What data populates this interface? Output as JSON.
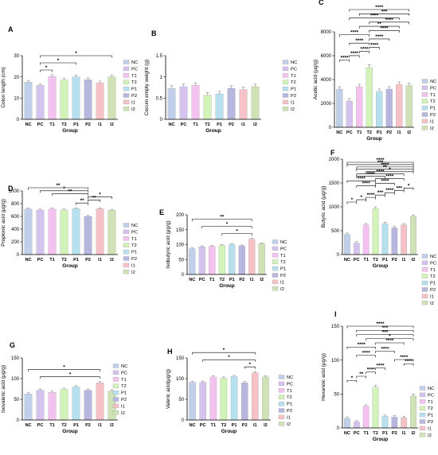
{
  "groups": [
    "NC",
    "PC",
    "T1",
    "T2",
    "P1",
    "P2",
    "I1",
    "I2"
  ],
  "colors": [
    "#c0d0ea",
    "#d5c2ee",
    "#f4c2ef",
    "#d2f3b8",
    "#b6e0ee",
    "#b6b6de",
    "#f6c2c8",
    "#cfe2b6"
  ],
  "chart_data": [
    {
      "panel": "A",
      "type": "bar",
      "xlabel": "Group",
      "ylabel": "Colon length (cm)",
      "ylim": [
        0,
        30
      ],
      "yticks": [
        0,
        10,
        20,
        30
      ],
      "values": [
        17.5,
        16.0,
        20.2,
        18.5,
        20.0,
        18.7,
        17.2,
        20.0
      ],
      "errors": [
        0.8,
        0.8,
        0.8,
        0.8,
        0.8,
        0.8,
        0.8,
        0.8
      ],
      "brackets": [
        {
          "from": "PC",
          "to": "T1",
          "label": "*"
        },
        {
          "from": "PC",
          "to": "P1",
          "label": "*"
        },
        {
          "from": "PC",
          "to": "I2",
          "label": "*"
        }
      ]
    },
    {
      "panel": "B",
      "type": "bar",
      "xlabel": "Group",
      "ylabel": "Cecum empty weight (g)",
      "ylim": [
        0,
        1.5
      ],
      "yticks": [
        0,
        0.5,
        1.0,
        1.5
      ],
      "values": [
        0.73,
        0.77,
        0.8,
        0.57,
        0.6,
        0.73,
        0.7,
        0.77
      ],
      "errors": [
        0.06,
        0.06,
        0.06,
        0.06,
        0.06,
        0.06,
        0.06,
        0.06
      ],
      "brackets": []
    },
    {
      "panel": "C",
      "type": "bar",
      "xlabel": "Group",
      "ylabel": "Acetic acid (μg/g)",
      "ylim": [
        0,
        8000
      ],
      "yticks": [
        0,
        2000,
        4000,
        6000,
        8000
      ],
      "values": [
        3200,
        2200,
        3400,
        5000,
        3000,
        3200,
        3600,
        3500
      ],
      "errors": [
        200,
        200,
        200,
        250,
        200,
        200,
        200,
        200
      ],
      "brackets": [
        {
          "from": "NC",
          "to": "PC",
          "label": "****"
        },
        {
          "from": "PC",
          "to": "T1",
          "label": "****"
        },
        {
          "from": "T1",
          "to": "T2",
          "label": "****"
        },
        {
          "from": "T2",
          "to": "P1",
          "label": "****"
        },
        {
          "from": "PC",
          "to": "T2",
          "label": "****"
        },
        {
          "from": "T2",
          "to": "P2",
          "label": "****"
        },
        {
          "from": "NC",
          "to": "T2",
          "label": "****"
        },
        {
          "from": "T2",
          "to": "I1",
          "label": "****"
        },
        {
          "from": "T1",
          "to": "I1",
          "label": "**"
        },
        {
          "from": "PC",
          "to": "I1",
          "label": "****"
        },
        {
          "from": "T2",
          "to": "I2",
          "label": "****"
        },
        {
          "from": "PC",
          "to": "I2",
          "label": "****"
        },
        {
          "from": "T1",
          "to": "I2",
          "label": "***"
        }
      ]
    },
    {
      "panel": "D",
      "type": "bar",
      "xlabel": "Group",
      "ylabel": "Propionic acid (μg/g)",
      "ylim": [
        0,
        1000
      ],
      "yticks": [
        0,
        200,
        400,
        600,
        800,
        1000
      ],
      "values": [
        715,
        700,
        715,
        700,
        720,
        600,
        720,
        695
      ],
      "errors": [
        15,
        15,
        15,
        15,
        15,
        15,
        15,
        15
      ],
      "brackets": [
        {
          "from": "P1",
          "to": "P2",
          "label": "**"
        },
        {
          "from": "P2",
          "to": "I1",
          "label": "**"
        },
        {
          "from": "P2",
          "to": "I2",
          "label": "*"
        },
        {
          "from": "T1",
          "to": "P2",
          "label": "**"
        },
        {
          "from": "PC",
          "to": "P2",
          "label": "*"
        },
        {
          "from": "NC",
          "to": "P2",
          "label": "**"
        }
      ]
    },
    {
      "panel": "E",
      "type": "bar",
      "xlabel": "Group",
      "ylabel": "Isobutyric acid (μg/g)",
      "ylim": [
        0,
        200
      ],
      "yticks": [
        0,
        50,
        100,
        150,
        200
      ],
      "values": [
        86,
        93,
        94,
        97,
        100,
        96,
        118,
        103
      ],
      "errors": [
        3,
        3,
        3,
        3,
        3,
        3,
        3,
        3
      ],
      "brackets": [
        {
          "from": "T2",
          "to": "I1",
          "label": "*"
        },
        {
          "from": "PC",
          "to": "I1",
          "label": "*"
        },
        {
          "from": "NC",
          "to": "I1",
          "label": "**"
        }
      ]
    },
    {
      "panel": "F",
      "type": "bar",
      "xlabel": "Group",
      "ylabel": "Butyric acid (μg/g)",
      "ylim": [
        0,
        2000
      ],
      "yticks": [
        0,
        500,
        1000,
        1500,
        2000
      ],
      "values": [
        420,
        240,
        620,
        960,
        650,
        560,
        620,
        800
      ],
      "errors": [
        30,
        30,
        30,
        40,
        30,
        30,
        30,
        30
      ],
      "brackets": [
        {
          "from": "NC",
          "to": "PC",
          "label": "*"
        },
        {
          "from": "PC",
          "to": "T1",
          "label": "*"
        },
        {
          "from": "T1",
          "to": "T2",
          "label": "****"
        },
        {
          "from": "T2",
          "to": "P1",
          "label": "***"
        },
        {
          "from": "P1",
          "to": "P2",
          "label": "****"
        },
        {
          "from": "P2",
          "to": "I1",
          "label": "***"
        },
        {
          "from": "I1",
          "to": "I2",
          "label": "*"
        },
        {
          "from": "PC",
          "to": "T2",
          "label": "****"
        },
        {
          "from": "T2",
          "to": "P2",
          "label": "****"
        },
        {
          "from": "NC",
          "to": "T2",
          "label": "****"
        },
        {
          "from": "T2",
          "to": "I1",
          "label": "****"
        },
        {
          "from": "PC",
          "to": "P1",
          "label": "****"
        },
        {
          "from": "PC",
          "to": "I1",
          "label": "****"
        },
        {
          "from": "NC",
          "to": "I2",
          "label": "***"
        },
        {
          "from": "PC",
          "to": "I2",
          "label": "**"
        },
        {
          "from": "T1",
          "to": "I2",
          "label": "*"
        },
        {
          "from": "NC",
          "to": "I2",
          "label": "****"
        },
        {
          "from": "PC",
          "to": "I2",
          "label": "****"
        }
      ]
    },
    {
      "panel": "G",
      "type": "bar",
      "xlabel": "Group",
      "ylabel": "Isovaleric acid (μg/g)",
      "ylim": [
        0,
        150
      ],
      "yticks": [
        0,
        50,
        100,
        150
      ],
      "values": [
        63,
        72,
        67,
        74,
        80,
        72,
        90,
        70
      ],
      "errors": [
        3,
        3,
        3,
        3,
        3,
        3,
        3,
        3
      ],
      "brackets": [
        {
          "from": "PC",
          "to": "I1",
          "label": "*"
        },
        {
          "from": "NC",
          "to": "I1",
          "label": "*"
        }
      ]
    },
    {
      "panel": "H",
      "type": "bar",
      "xlabel": "Group",
      "ylabel": "Valeric acid(μg/g)",
      "ylim": [
        0,
        150
      ],
      "yticks": [
        0,
        50,
        100,
        150
      ],
      "values": [
        91,
        91,
        104,
        101,
        105,
        90,
        114,
        104
      ],
      "errors": [
        3,
        3,
        3,
        3,
        3,
        3,
        3,
        3
      ],
      "brackets": [
        {
          "from": "P2",
          "to": "I1",
          "label": "*"
        },
        {
          "from": "NC",
          "to": "I1",
          "label": "*"
        },
        {
          "from": "PC",
          "to": "I1",
          "label": "*"
        }
      ]
    },
    {
      "panel": "I",
      "type": "bar",
      "xlabel": "Group",
      "ylabel": "Hexanoic acid (μg/g)",
      "ylim": [
        0,
        150
      ],
      "yticks": [
        0,
        50,
        100,
        150
      ],
      "values": [
        14,
        9,
        32,
        60,
        17,
        16,
        15,
        47
      ],
      "errors": [
        2,
        2,
        2,
        3,
        2,
        2,
        2,
        3
      ],
      "brackets": [
        {
          "from": "NC",
          "to": "PC",
          "label": "*"
        },
        {
          "from": "PC",
          "to": "T1",
          "label": "**"
        },
        {
          "from": "T1",
          "to": "T2",
          "label": "****"
        },
        {
          "from": "T2",
          "to": "P1",
          "label": "****"
        },
        {
          "from": "P2",
          "to": "I2",
          "label": "****"
        },
        {
          "from": "PC",
          "to": "T2",
          "label": "****"
        },
        {
          "from": "T2",
          "to": "P2",
          "label": "****"
        },
        {
          "from": "NC",
          "to": "T2",
          "label": "****"
        },
        {
          "from": "T2",
          "to": "I1",
          "label": "****"
        },
        {
          "from": "I1",
          "to": "I2",
          "label": "****"
        },
        {
          "from": "PC",
          "to": "I2",
          "label": "***"
        },
        {
          "from": "T1",
          "to": "I2",
          "label": "*"
        },
        {
          "from": "NC",
          "to": "I2",
          "label": "****"
        },
        {
          "from": "PC",
          "to": "I2",
          "label": "***"
        }
      ]
    }
  ]
}
